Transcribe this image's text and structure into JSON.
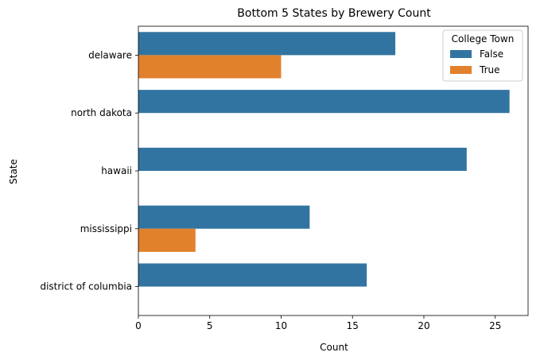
{
  "chart_data": {
    "type": "bar",
    "orientation": "horizontal",
    "title": "Bottom 5 States by Brewery Count",
    "xlabel": "Count",
    "ylabel": "State",
    "categories": [
      "delaware",
      "north dakota",
      "hawaii",
      "mississippi",
      "district of columbia"
    ],
    "series": [
      {
        "name": "False",
        "color": "#3274a1",
        "values": [
          18,
          26,
          23,
          12,
          16
        ]
      },
      {
        "name": "True",
        "color": "#e1812c",
        "values": [
          10,
          0,
          0,
          4,
          0
        ]
      }
    ],
    "xlim": [
      0,
      27.3
    ],
    "xticks": [
      0,
      5,
      10,
      15,
      20,
      25
    ],
    "grid": false,
    "legend": {
      "title": "College Town",
      "placement": "top-right"
    }
  }
}
